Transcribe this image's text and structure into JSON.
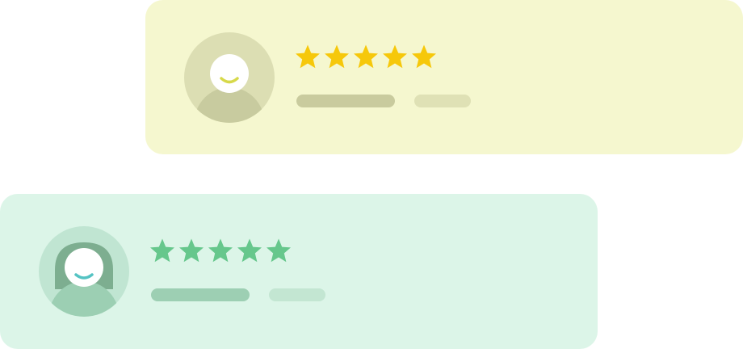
{
  "reviews": [
    {
      "id": "top",
      "rating": 5,
      "max_rating": 5,
      "avatar_icon": "user-avatar-icon",
      "star_icon": "star-icon",
      "colors": {
        "card_bg": "#f5f7cf",
        "avatar_bg": "#dcdeb3",
        "avatar_body": "#c8cb9f",
        "avatar_face": "#ffffff",
        "avatar_smile": "#d7d94a",
        "star": "#f6c80b",
        "bar_long": "#c9cb9e",
        "bar_short": "#dfe1b5"
      }
    },
    {
      "id": "bottom",
      "rating": 5,
      "max_rating": 5,
      "avatar_icon": "user-avatar-long-hair-icon",
      "star_icon": "star-icon",
      "colors": {
        "card_bg": "#dcf5e8",
        "avatar_bg": "#c0e5d2",
        "avatar_body": "#9ccfb3",
        "avatar_hair": "#7dae90",
        "avatar_face": "#ffffff",
        "avatar_smile": "#55c3c3",
        "star": "#66c78c",
        "bar_long": "#9dcfb3",
        "bar_short": "#c3e6d2"
      }
    }
  ]
}
